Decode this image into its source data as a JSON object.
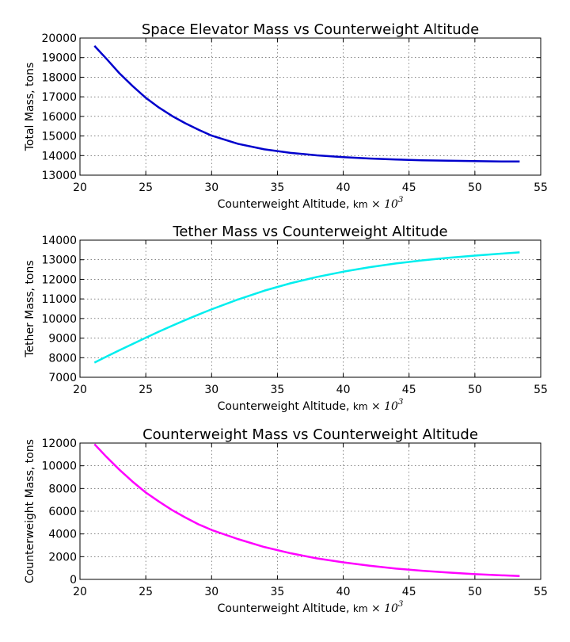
{
  "chart_data": [
    {
      "type": "line",
      "title": "Space Elevator Mass vs Counterweight Altitude",
      "xlabel": "Counterweight Altitude,",
      "xlabel_unit": "km",
      "xlabel_scale": "× 10",
      "xlabel_exp": "3",
      "ylabel": "Total Mass, tons",
      "xlim": [
        20,
        55
      ],
      "ylim": [
        13000,
        20000
      ],
      "xticks": [
        20,
        25,
        30,
        35,
        40,
        45,
        50,
        55
      ],
      "yticks": [
        13000,
        14000,
        15000,
        16000,
        17000,
        18000,
        19000,
        20000
      ],
      "grid": true,
      "series": [
        {
          "color": "#0000cc",
          "x": [
            21.1,
            22,
            23,
            24,
            25,
            26,
            27,
            28,
            29,
            30,
            32,
            34,
            36,
            38,
            40,
            42,
            44,
            46,
            48,
            50,
            52,
            53.4
          ],
          "y": [
            19600,
            18950,
            18200,
            17550,
            16950,
            16450,
            16020,
            15650,
            15320,
            15020,
            14600,
            14320,
            14140,
            14010,
            13920,
            13850,
            13800,
            13760,
            13740,
            13720,
            13700,
            13700
          ]
        }
      ]
    },
    {
      "type": "line",
      "title": "Tether Mass vs Counterweight Altitude",
      "xlabel": "Counterweight Altitude,",
      "xlabel_unit": "km",
      "xlabel_scale": "× 10",
      "xlabel_exp": "3",
      "ylabel": "Tether Mass, tons",
      "xlim": [
        20,
        55
      ],
      "ylim": [
        7000,
        14000
      ],
      "xticks": [
        20,
        25,
        30,
        35,
        40,
        45,
        50,
        55
      ],
      "yticks": [
        7000,
        8000,
        9000,
        10000,
        11000,
        12000,
        13000,
        14000
      ],
      "grid": true,
      "series": [
        {
          "color": "#00eeee",
          "x": [
            21.1,
            22,
            23,
            24,
            25,
            26,
            27,
            28,
            29,
            30,
            32,
            34,
            36,
            38,
            40,
            42,
            44,
            46,
            48,
            50,
            52,
            53.4
          ],
          "y": [
            7750,
            8050,
            8380,
            8700,
            9020,
            9330,
            9630,
            9920,
            10200,
            10470,
            10970,
            11420,
            11800,
            12120,
            12390,
            12620,
            12810,
            12970,
            13100,
            13210,
            13310,
            13380
          ]
        }
      ]
    },
    {
      "type": "line",
      "title": "Counterweight Mass vs Counterweight Altitude",
      "xlabel": "Counterweight Altitude,",
      "xlabel_unit": "km",
      "xlabel_scale": "× 10",
      "xlabel_exp": "3",
      "ylabel": "Counterweight Mass, tons",
      "xlim": [
        20,
        55
      ],
      "ylim": [
        0,
        12000
      ],
      "xticks": [
        20,
        25,
        30,
        35,
        40,
        45,
        50,
        55
      ],
      "yticks": [
        0,
        2000,
        4000,
        6000,
        8000,
        10000,
        12000
      ],
      "grid": true,
      "series": [
        {
          "color": "#ff00ff",
          "x": [
            21.1,
            22,
            23,
            24,
            25,
            26,
            27,
            28,
            29,
            30,
            32,
            34,
            36,
            38,
            40,
            42,
            44,
            46,
            48,
            50,
            52,
            53.4
          ],
          "y": [
            11900,
            10800,
            9650,
            8600,
            7650,
            6850,
            6100,
            5450,
            4850,
            4350,
            3550,
            2850,
            2300,
            1850,
            1500,
            1200,
            950,
            760,
            600,
            460,
            360,
            300
          ]
        }
      ]
    }
  ]
}
